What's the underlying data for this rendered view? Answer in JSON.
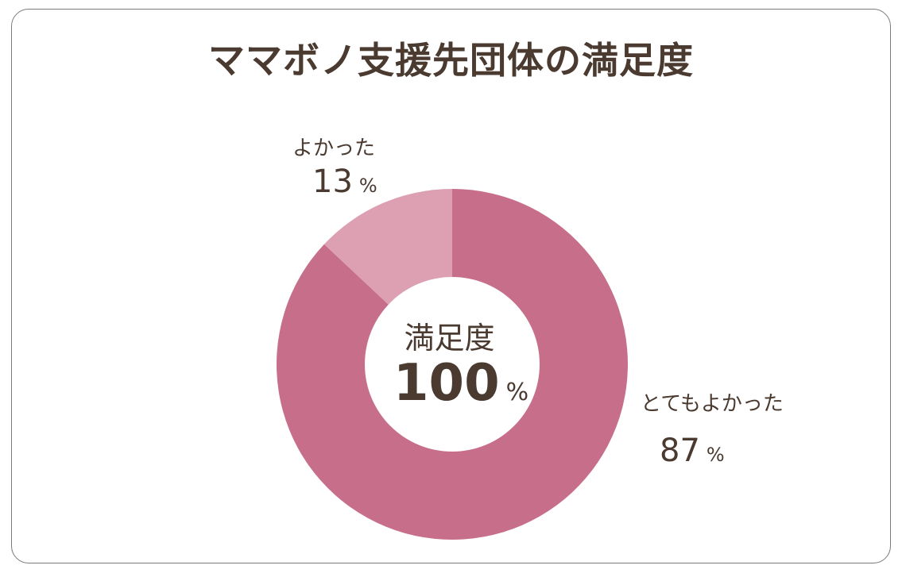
{
  "chart_data": {
    "type": "pie",
    "title": "ママボノ支援先団体の満足度",
    "categories": [
      "とてもよかった",
      "よかった"
    ],
    "values": [
      87,
      13
    ],
    "unit": "%",
    "colors": [
      "#c76e8b",
      "#dca0b2"
    ],
    "center_label": "満足度",
    "center_value": "100",
    "center_unit": "%"
  }
}
